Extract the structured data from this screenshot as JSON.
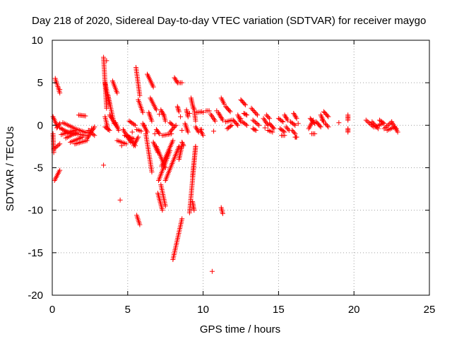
{
  "chart_data": {
    "type": "scatter",
    "title": "Day 218 of 2020, Sidereal Day-to-day VTEC variation (SDTVAR) for receiver maygo",
    "xlabel": "GPS time / hours",
    "ylabel": "SDTVAR / TECUs",
    "xlim": [
      0,
      25
    ],
    "ylim": [
      -20,
      10
    ],
    "xticks": [
      0,
      5,
      10,
      15,
      20,
      25
    ],
    "yticks": [
      -20,
      -15,
      -10,
      -5,
      0,
      5,
      10
    ],
    "grid": true,
    "marker": "+",
    "color": "#ff0000",
    "segments": [
      [
        0.05,
        1.0,
        0.35,
        -0.2
      ],
      [
        0.05,
        -1.0,
        0.1,
        -3.2
      ],
      [
        0.1,
        -2.8,
        0.5,
        -2.2
      ],
      [
        0.15,
        -6.5,
        0.5,
        -5.3
      ],
      [
        0.2,
        5.5,
        0.5,
        3.8
      ],
      [
        0.3,
        -0.3,
        0.5,
        0.2
      ],
      [
        0.5,
        -0.3,
        1.2,
        -1.0
      ],
      [
        0.6,
        -1.1,
        1.5,
        -0.6
      ],
      [
        0.7,
        0.3,
        1.4,
        -0.3
      ],
      [
        0.9,
        -1.5,
        1.6,
        -0.9
      ],
      [
        1.0,
        -0.8,
        2.2,
        -1.2
      ],
      [
        1.2,
        -2.0,
        2.0,
        -1.4
      ],
      [
        1.5,
        -0.4,
        2.3,
        -0.9
      ],
      [
        1.5,
        -2.2,
        2.3,
        -1.8
      ],
      [
        1.75,
        1.2,
        2.2,
        1.1
      ],
      [
        2.3,
        -1.6,
        2.8,
        -0.2
      ],
      [
        2.4,
        -0.6,
        2.8,
        -1.2
      ],
      [
        3.4,
        8.0,
        3.6,
        2.0
      ],
      [
        3.5,
        5.0,
        3.8,
        2.5
      ],
      [
        3.5,
        1.0,
        3.7,
        -0.5
      ],
      [
        3.7,
        3.5,
        4.1,
        0.2
      ],
      [
        3.8,
        1.2,
        4.3,
        -0.2
      ],
      [
        3.5,
        -0.2,
        3.8,
        -0.6
      ],
      [
        4.0,
        5.2,
        4.3,
        3.8
      ],
      [
        4.2,
        0.3,
        4.4,
        -0.6
      ],
      [
        4.3,
        -1.8,
        4.9,
        -2.2
      ],
      [
        4.7,
        -0.5,
        5.2,
        -2.0
      ],
      [
        4.8,
        -1.2,
        5.4,
        -1.6
      ],
      [
        5.0,
        -1.2,
        5.5,
        -2.4
      ],
      [
        5.1,
        0.5,
        5.5,
        0.0
      ],
      [
        5.4,
        -2.4,
        5.7,
        -1.4
      ],
      [
        5.55,
        6.8,
        5.8,
        3.5
      ],
      [
        5.6,
        -0.5,
        5.9,
        -0.7
      ],
      [
        5.7,
        3.0,
        6.0,
        1.5
      ],
      [
        5.6,
        -10.6,
        5.8,
        -11.7
      ],
      [
        6.0,
        0.2,
        6.3,
        -0.8
      ],
      [
        6.2,
        -1.0,
        6.6,
        -5.5
      ],
      [
        6.3,
        6.0,
        6.7,
        4.5
      ],
      [
        6.4,
        1.5,
        6.6,
        0.5
      ],
      [
        6.5,
        3.2,
        6.9,
        1.8
      ],
      [
        6.7,
        -2.0,
        7.0,
        -3.2
      ],
      [
        6.9,
        -0.5,
        7.1,
        -1.0
      ],
      [
        6.9,
        -2.5,
        7.5,
        -5.0
      ],
      [
        7.0,
        -8.0,
        7.3,
        -10.0
      ],
      [
        7.05,
        -6.5,
        7.8,
        -3.0
      ],
      [
        7.2,
        -7.0,
        7.5,
        -9.5
      ],
      [
        7.2,
        1.8,
        7.4,
        1.2
      ],
      [
        7.25,
        -4.8,
        8.0,
        -1.8
      ],
      [
        7.3,
        -1.2,
        7.9,
        -1.0
      ],
      [
        7.4,
        1.2,
        7.5,
        0.5
      ],
      [
        7.5,
        -6.5,
        8.4,
        -2.5
      ],
      [
        7.8,
        -0.8,
        8.2,
        0.0
      ],
      [
        7.8,
        0.3,
        8.0,
        0.0
      ],
      [
        8.0,
        -15.8,
        8.6,
        -11.0
      ],
      [
        8.1,
        5.6,
        8.3,
        5.0
      ],
      [
        8.3,
        5.0,
        8.6,
        5.0
      ],
      [
        8.3,
        2.2,
        8.4,
        1.6
      ],
      [
        8.4,
        -4.0,
        8.6,
        -2.4
      ],
      [
        8.6,
        -2.0,
        8.7,
        -2.4
      ],
      [
        8.8,
        0.2,
        9.0,
        -0.8
      ],
      [
        8.9,
        1.8,
        9.0,
        1.0
      ],
      [
        9.1,
        -10.3,
        9.5,
        -2.5
      ],
      [
        9.2,
        3.2,
        9.35,
        2.0
      ],
      [
        9.3,
        -6.0,
        9.5,
        -2.5
      ],
      [
        9.4,
        2.0,
        9.5,
        0.5
      ],
      [
        9.5,
        -0.2,
        9.7,
        -0.8
      ],
      [
        9.6,
        1.5,
        9.9,
        1.6
      ],
      [
        9.8,
        -0.5,
        10.0,
        -1.2
      ],
      [
        9.3,
        -9.0,
        9.4,
        -10.0
      ],
      [
        10.2,
        1.7,
        10.4,
        1.7
      ],
      [
        10.5,
        1.3,
        10.8,
        0.5
      ],
      [
        11.0,
        1.5,
        11.3,
        0.6
      ],
      [
        11.2,
        3.2,
        11.4,
        2.5
      ],
      [
        11.2,
        -9.7,
        11.3,
        -10.4
      ],
      [
        11.5,
        2.2,
        11.8,
        1.6
      ],
      [
        11.5,
        0.4,
        11.9,
        0.6
      ],
      [
        11.6,
        -0.4,
        11.9,
        0.0
      ],
      [
        12.0,
        0.6,
        12.3,
        0.0
      ],
      [
        12.3,
        1.2,
        12.5,
        0.4
      ],
      [
        12.5,
        3.0,
        12.8,
        2.4
      ],
      [
        12.6,
        0.4,
        12.9,
        0.0
      ],
      [
        12.7,
        1.4,
        12.9,
        1.2
      ],
      [
        13.2,
        2.0,
        13.6,
        1.2
      ],
      [
        13.3,
        0.6,
        13.7,
        0.0
      ],
      [
        13.3,
        -0.4,
        13.5,
        -0.6
      ],
      [
        14.0,
        0.8,
        14.3,
        0.0
      ],
      [
        14.2,
        1.2,
        14.4,
        0.8
      ],
      [
        14.3,
        -0.6,
        14.6,
        -0.8
      ],
      [
        14.4,
        0.2,
        14.7,
        -0.4
      ],
      [
        15.0,
        0.8,
        15.3,
        0.4
      ],
      [
        15.1,
        -0.4,
        15.4,
        -0.8
      ],
      [
        15.2,
        -1.2,
        15.4,
        -1.2
      ],
      [
        15.4,
        1.2,
        15.6,
        0.6
      ],
      [
        15.5,
        -0.2,
        15.7,
        -0.6
      ],
      [
        15.8,
        0.4,
        16.1,
        0.0
      ],
      [
        15.9,
        -0.6,
        16.1,
        -1.0
      ],
      [
        16.0,
        1.4,
        16.2,
        0.8
      ],
      [
        16.1,
        -1.4,
        16.2,
        -1.4
      ],
      [
        17.0,
        -0.4,
        17.3,
        0.6
      ],
      [
        17.1,
        0.8,
        17.4,
        0.2
      ],
      [
        17.2,
        -1.0,
        17.4,
        -1.0
      ],
      [
        17.5,
        0.4,
        17.8,
        -0.2
      ],
      [
        17.8,
        1.2,
        18.0,
        0.4
      ],
      [
        18.0,
        1.6,
        18.3,
        1.0
      ],
      [
        18.1,
        0.2,
        18.3,
        -0.2
      ],
      [
        19.6,
        1.2,
        19.6,
        0.6
      ],
      [
        19.6,
        -0.4,
        19.6,
        -0.8
      ],
      [
        20.8,
        0.6,
        21.3,
        -0.2
      ],
      [
        21.2,
        0.4,
        21.6,
        -0.4
      ],
      [
        21.4,
        -0.2,
        21.9,
        0.2
      ],
      [
        21.7,
        0.6,
        22.0,
        0.2
      ],
      [
        22.0,
        -0.4,
        22.5,
        0.4
      ],
      [
        22.2,
        -0.6,
        22.7,
        -0.2
      ],
      [
        22.5,
        0.4,
        22.9,
        -0.8
      ]
    ],
    "points": [
      [
        3.4,
        -4.7
      ],
      [
        4.5,
        -8.8
      ],
      [
        6.1,
        0.0
      ],
      [
        7.1,
        1.3
      ],
      [
        9.1,
        1.4
      ],
      [
        10.6,
        -17.2
      ],
      [
        10.9,
        1.7
      ],
      [
        10.7,
        -0.7
      ],
      [
        12.5,
        0.8
      ],
      [
        14.1,
        -0.3
      ],
      [
        16.3,
        0.2
      ],
      [
        8.5,
        1.0
      ],
      [
        8.6,
        -0.6
      ],
      [
        9.9,
        -0.5
      ],
      [
        10.0,
        1.5
      ],
      [
        0.5,
        4.2
      ],
      [
        2.6,
        -0.4
      ],
      [
        3.6,
        7.6
      ],
      [
        4.6,
        -2.4
      ],
      [
        5.3,
        -0.8
      ],
      [
        6.8,
        -1.0
      ],
      [
        17.9,
        0.6
      ],
      [
        19.0,
        0.3
      ],
      [
        22.8,
        -0.4
      ]
    ]
  }
}
